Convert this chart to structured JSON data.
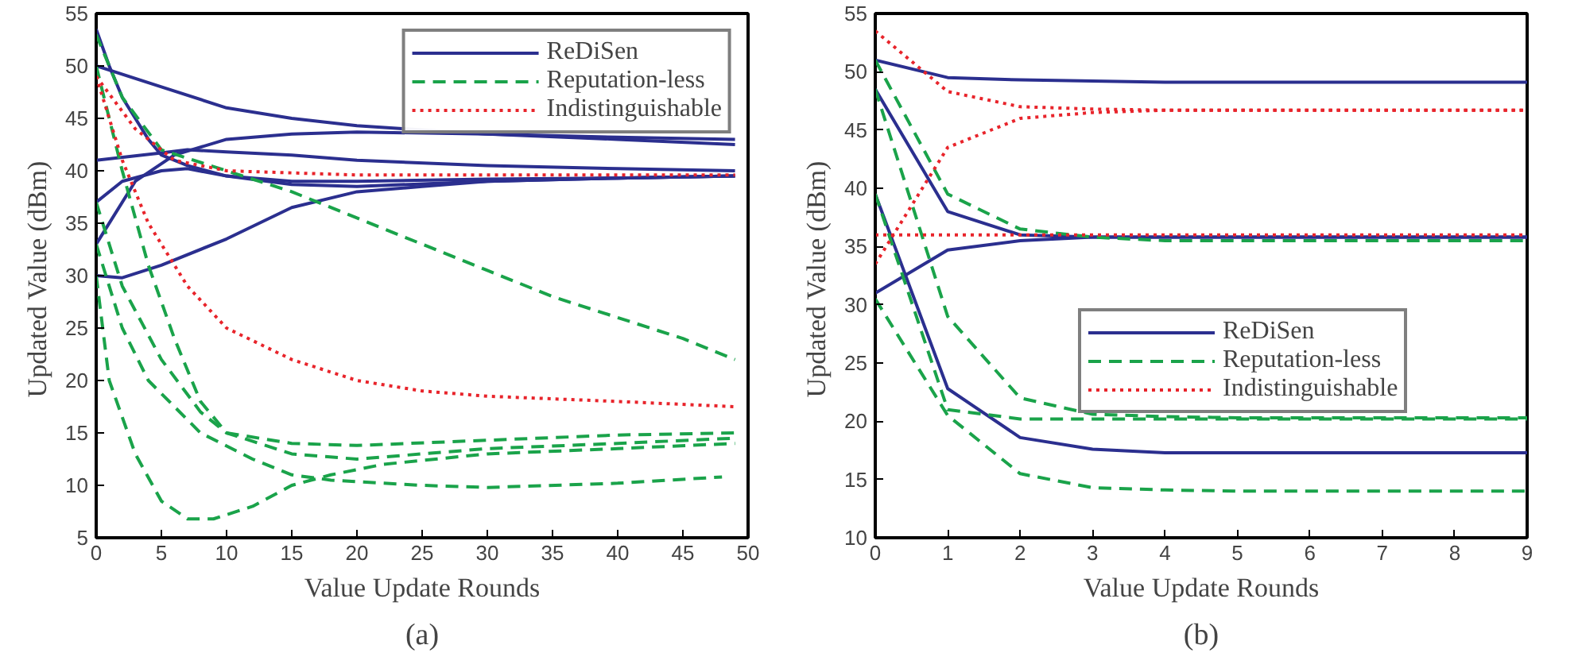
{
  "chart_data": [
    {
      "type": "line",
      "xlabel": "Value Update Rounds",
      "ylabel": "Updated Value  (dBm)",
      "annotations": [
        "(a)"
      ],
      "xlim": [
        0,
        50
      ],
      "ylim": [
        5,
        55
      ],
      "xticks": [
        0,
        5,
        10,
        15,
        20,
        25,
        30,
        35,
        40,
        45,
        50
      ],
      "yticks": [
        5,
        10,
        15,
        20,
        25,
        30,
        35,
        40,
        45,
        50,
        55
      ],
      "grid": false,
      "legend": "top right",
      "series": [
        {
          "name": "ReDiSen",
          "color": "#2b2f8f",
          "line_style": "solid",
          "x": [
            0,
            1,
            2,
            3,
            4,
            5,
            7,
            10,
            15,
            20,
            30,
            40,
            49
          ],
          "values": [
            53.5,
            50,
            47,
            45,
            43,
            41.5,
            40.5,
            39.5,
            39,
            39,
            39.2,
            39.3,
            39.5
          ]
        },
        {
          "color": "#2b2f8f",
          "line_style": "solid",
          "x": [
            0,
            5,
            10,
            15,
            20,
            30,
            40,
            49
          ],
          "values": [
            50,
            48,
            46,
            45,
            44.3,
            43.5,
            43,
            42.5
          ]
        },
        {
          "color": "#2b2f8f",
          "line_style": "solid",
          "x": [
            0,
            5,
            7,
            10,
            15,
            20,
            30,
            40,
            49
          ],
          "values": [
            41,
            41.7,
            42,
            41.8,
            41.5,
            41,
            40.5,
            40.2,
            40
          ]
        },
        {
          "color": "#2b2f8f",
          "line_style": "solid",
          "x": [
            0,
            2,
            5,
            7,
            10,
            15,
            20,
            30,
            40,
            49
          ],
          "values": [
            37,
            39,
            40,
            40.2,
            39.5,
            38.7,
            38.5,
            39,
            39.3,
            39.5
          ]
        },
        {
          "color": "#2b2f8f",
          "line_style": "solid",
          "x": [
            0,
            3,
            6,
            10,
            15,
            20,
            30,
            40,
            49
          ],
          "values": [
            33,
            39,
            41.5,
            43,
            43.5,
            43.7,
            43.5,
            43.2,
            43
          ]
        },
        {
          "color": "#2b2f8f",
          "line_style": "solid",
          "x": [
            0,
            2,
            5,
            10,
            15,
            20,
            25,
            30,
            40,
            49
          ],
          "values": [
            30,
            29.8,
            31,
            33.5,
            36.5,
            38,
            38.5,
            39,
            39.3,
            39.5
          ]
        },
        {
          "name": "Reputation-less",
          "color": "#1aa34a",
          "line_style": "dashed",
          "x": [
            0,
            2,
            5,
            10,
            15,
            20,
            25,
            30,
            35,
            40,
            45,
            49
          ],
          "values": [
            53,
            47,
            42,
            40,
            38,
            35.5,
            33,
            30.5,
            28,
            26,
            24,
            22
          ]
        },
        {
          "color": "#1aa34a",
          "line_style": "dashed",
          "x": [
            0,
            2,
            4,
            6,
            8,
            10,
            15,
            20,
            30,
            40,
            49
          ],
          "values": [
            50,
            40,
            31,
            24,
            18,
            15,
            14,
            13.8,
            14.3,
            14.8,
            15
          ]
        },
        {
          "color": "#1aa34a",
          "line_style": "dashed",
          "x": [
            0,
            2,
            5,
            8,
            10,
            15,
            20,
            30,
            40,
            49
          ],
          "values": [
            37,
            29,
            22,
            17,
            15,
            13,
            12.5,
            13.5,
            14,
            14.5
          ]
        },
        {
          "color": "#1aa34a",
          "line_style": "dashed",
          "x": [
            0,
            2,
            4,
            8,
            12,
            15,
            18,
            25,
            30,
            40,
            48
          ],
          "values": [
            33,
            25,
            20,
            15,
            12.5,
            11,
            10.5,
            10,
            9.8,
            10.2,
            10.8
          ]
        },
        {
          "color": "#1aa34a",
          "line_style": "dashed",
          "x": [
            0,
            1,
            3,
            5,
            7,
            9,
            12,
            15,
            18,
            22,
            30,
            40,
            49
          ],
          "values": [
            30,
            20,
            13,
            8.5,
            6.8,
            6.8,
            8,
            10,
            11,
            12,
            13,
            13.5,
            14
          ]
        },
        {
          "name": "Indistinguishable",
          "color": "#e8242b",
          "line_style": "dotted",
          "x": [
            0,
            3,
            6,
            10,
            20,
            30,
            40,
            49
          ],
          "values": [
            49,
            44,
            41,
            40,
            39.6,
            39.6,
            39.6,
            39.6
          ]
        },
        {
          "color": "#e8242b",
          "line_style": "dotted",
          "x": [
            0,
            2,
            4,
            7,
            10,
            15,
            20,
            25,
            30,
            40,
            49
          ],
          "values": [
            49,
            41,
            35,
            29,
            25,
            22,
            20,
            19,
            18.5,
            18,
            17.5
          ]
        }
      ]
    },
    {
      "type": "line",
      "xlabel": "Value Update Rounds",
      "ylabel": "Updated Value  (dBm)",
      "annotations": [
        "(b)"
      ],
      "xlim": [
        0,
        9
      ],
      "ylim": [
        10,
        55
      ],
      "xticks": [
        0,
        1,
        2,
        3,
        4,
        5,
        6,
        7,
        8,
        9
      ],
      "yticks": [
        10,
        15,
        20,
        25,
        30,
        35,
        40,
        45,
        50,
        55
      ],
      "grid": false,
      "legend": "right",
      "x": [
        0,
        1,
        2,
        3,
        4,
        5,
        6,
        7,
        8,
        9
      ],
      "series": [
        {
          "name": "ReDiSen",
          "color": "#2b2f8f",
          "line_style": "solid",
          "values": [
            51,
            49.5,
            49.3,
            49.2,
            49.1,
            49.1,
            49.1,
            49.1,
            49.1,
            49.1
          ]
        },
        {
          "color": "#2b2f8f",
          "line_style": "solid",
          "values": [
            48.5,
            38,
            36,
            35.8,
            35.8,
            35.8,
            35.8,
            35.8,
            35.8,
            35.8
          ]
        },
        {
          "color": "#2b2f8f",
          "line_style": "solid",
          "values": [
            31,
            34.7,
            35.5,
            35.8,
            35.8,
            35.8,
            35.8,
            35.8,
            35.8,
            35.8
          ]
        },
        {
          "color": "#2b2f8f",
          "line_style": "solid",
          "values": [
            39.5,
            22.8,
            18.6,
            17.6,
            17.3,
            17.3,
            17.3,
            17.3,
            17.3,
            17.3
          ]
        },
        {
          "name": "Reputation-less",
          "color": "#1aa34a",
          "line_style": "dashed",
          "values": [
            51,
            39.5,
            36.5,
            35.8,
            35.5,
            35.5,
            35.5,
            35.5,
            35.5,
            35.5
          ]
        },
        {
          "color": "#1aa34a",
          "line_style": "dashed",
          "values": [
            48.5,
            29,
            22,
            20.6,
            20.4,
            20.3,
            20.3,
            20.3,
            20.3,
            20.3
          ]
        },
        {
          "color": "#1aa34a",
          "line_style": "dashed",
          "values": [
            39.5,
            21,
            20.2,
            20.2,
            20.2,
            20.2,
            20.2,
            20.2,
            20.2,
            20.2
          ]
        },
        {
          "color": "#1aa34a",
          "line_style": "dashed",
          "values": [
            30.5,
            20.5,
            15.5,
            14.3,
            14.1,
            14,
            14,
            14,
            14,
            14
          ]
        },
        {
          "name": "Indistinguishable",
          "color": "#e8242b",
          "line_style": "dotted",
          "values": [
            53.5,
            48.3,
            47,
            46.8,
            46.7,
            46.7,
            46.7,
            46.7,
            46.7,
            46.7
          ]
        },
        {
          "color": "#e8242b",
          "line_style": "dotted",
          "values": [
            33.5,
            43.5,
            46,
            46.5,
            46.7,
            46.7,
            46.7,
            46.7,
            46.7,
            46.7
          ]
        },
        {
          "color": "#e8242b",
          "line_style": "dotted",
          "values": [
            36,
            36,
            36,
            36,
            36,
            36,
            36,
            36,
            36,
            36
          ]
        }
      ]
    }
  ]
}
